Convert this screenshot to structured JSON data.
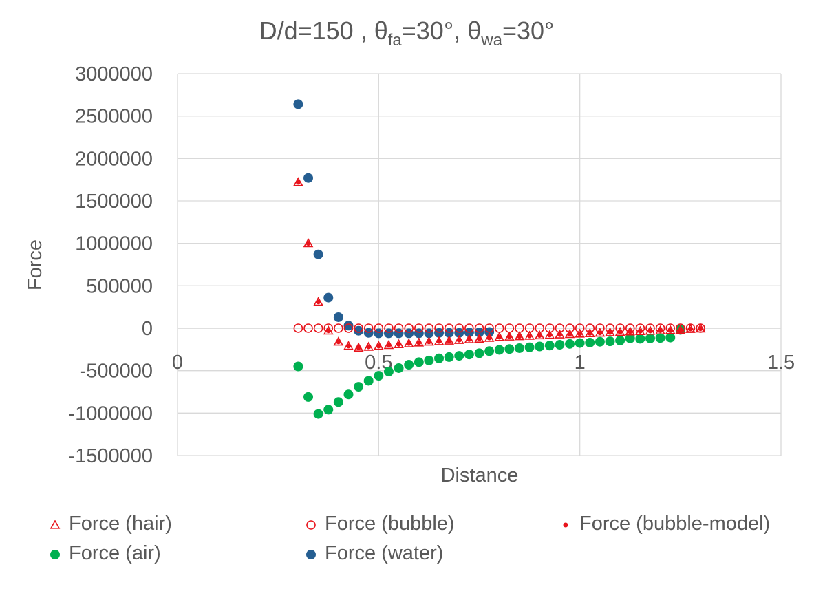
{
  "chart_data": {
    "type": "scatter",
    "title": {
      "base": "D/d=150 , θ",
      "sub1": "fa",
      "mid": "=30°, θ",
      "sub2": "wa",
      "tail": "=30°"
    },
    "xlabel": "Distance",
    "ylabel": "Force",
    "xlim": [
      0,
      1.5
    ],
    "ylim": [
      -1500000,
      3000000
    ],
    "x_ticks": [
      0,
      0.5,
      1,
      1.5
    ],
    "x_tick_labels": [
      "0",
      "0.5",
      "1",
      "1.5"
    ],
    "y_ticks": [
      3000000,
      2500000,
      2000000,
      1500000,
      1000000,
      500000,
      0,
      -500000,
      -1000000,
      -1500000
    ],
    "y_tick_labels": [
      "3000000",
      "2500000",
      "2000000",
      "1500000",
      "1000000",
      "500000",
      "0",
      "-500000",
      "-1000000",
      "-1500000"
    ],
    "grid": true,
    "legend_position": "bottom",
    "series": [
      {
        "name": "Force (hair)",
        "marker": "triangle-open",
        "color": "#e8141c",
        "points": [
          [
            0.3,
            1720000
          ],
          [
            0.325,
            1000000
          ],
          [
            0.35,
            310000
          ],
          [
            0.375,
            -30000
          ],
          [
            0.4,
            -160000
          ],
          [
            0.425,
            -210000
          ],
          [
            0.45,
            -230000
          ],
          [
            0.475,
            -220000
          ],
          [
            0.5,
            -210000
          ],
          [
            0.525,
            -200000
          ],
          [
            0.55,
            -190000
          ],
          [
            0.575,
            -180000
          ],
          [
            0.6,
            -170000
          ],
          [
            0.625,
            -160000
          ],
          [
            0.65,
            -155000
          ],
          [
            0.675,
            -148000
          ],
          [
            0.7,
            -140000
          ],
          [
            0.725,
            -132000
          ],
          [
            0.75,
            -125000
          ],
          [
            0.775,
            -115000
          ],
          [
            0.8,
            -105000
          ],
          [
            0.825,
            -100000
          ],
          [
            0.85,
            -95000
          ],
          [
            0.875,
            -90000
          ],
          [
            0.9,
            -85000
          ],
          [
            0.925,
            -80000
          ],
          [
            0.95,
            -75000
          ],
          [
            0.975,
            -70000
          ],
          [
            1.0,
            -65000
          ],
          [
            1.025,
            -60000
          ],
          [
            1.05,
            -55000
          ],
          [
            1.075,
            -50000
          ],
          [
            1.1,
            -45000
          ],
          [
            1.125,
            -40000
          ],
          [
            1.15,
            -36000
          ],
          [
            1.175,
            -32000
          ],
          [
            1.2,
            -28000
          ],
          [
            1.225,
            -24000
          ],
          [
            1.25,
            -20000
          ],
          [
            1.275,
            -10000
          ],
          [
            1.3,
            -5000
          ]
        ]
      },
      {
        "name": "Force (bubble)",
        "marker": "circle-open",
        "color": "#e8141c",
        "points": [
          [
            0.3,
            0
          ],
          [
            0.325,
            0
          ],
          [
            0.35,
            0
          ],
          [
            0.375,
            0
          ],
          [
            0.4,
            0
          ],
          [
            0.425,
            0
          ],
          [
            0.45,
            0
          ],
          [
            0.475,
            0
          ],
          [
            0.5,
            0
          ],
          [
            0.525,
            0
          ],
          [
            0.55,
            0
          ],
          [
            0.575,
            0
          ],
          [
            0.6,
            0
          ],
          [
            0.625,
            0
          ],
          [
            0.65,
            0
          ],
          [
            0.675,
            0
          ],
          [
            0.7,
            0
          ],
          [
            0.725,
            0
          ],
          [
            0.75,
            0
          ],
          [
            0.775,
            0
          ],
          [
            0.8,
            0
          ],
          [
            0.825,
            0
          ],
          [
            0.85,
            0
          ],
          [
            0.875,
            0
          ],
          [
            0.9,
            0
          ],
          [
            0.925,
            0
          ],
          [
            0.95,
            0
          ],
          [
            0.975,
            0
          ],
          [
            1.0,
            0
          ],
          [
            1.025,
            0
          ],
          [
            1.05,
            0
          ],
          [
            1.075,
            0
          ],
          [
            1.1,
            0
          ],
          [
            1.125,
            0
          ],
          [
            1.15,
            0
          ],
          [
            1.175,
            0
          ],
          [
            1.2,
            0
          ],
          [
            1.225,
            0
          ],
          [
            1.25,
            0
          ],
          [
            1.275,
            0
          ],
          [
            1.3,
            0
          ]
        ]
      },
      {
        "name": "Force (bubble-model)",
        "marker": "dot",
        "color": "#e8141c",
        "points": [
          [
            0.3,
            1720000
          ],
          [
            0.325,
            1000000
          ],
          [
            0.35,
            310000
          ],
          [
            0.375,
            -30000
          ],
          [
            0.4,
            -160000
          ],
          [
            0.425,
            -210000
          ],
          [
            0.45,
            -230000
          ],
          [
            0.475,
            -220000
          ],
          [
            0.5,
            -210000
          ],
          [
            0.525,
            -200000
          ],
          [
            0.55,
            -190000
          ],
          [
            0.575,
            -180000
          ],
          [
            0.6,
            -170000
          ],
          [
            0.625,
            -160000
          ],
          [
            0.65,
            -155000
          ],
          [
            0.675,
            -148000
          ],
          [
            0.7,
            -140000
          ],
          [
            0.725,
            -132000
          ],
          [
            0.75,
            -125000
          ],
          [
            0.775,
            -115000
          ],
          [
            0.8,
            -105000
          ],
          [
            0.825,
            -100000
          ],
          [
            0.85,
            -95000
          ],
          [
            0.875,
            -90000
          ],
          [
            0.9,
            -85000
          ],
          [
            0.925,
            -80000
          ],
          [
            0.95,
            -75000
          ],
          [
            0.975,
            -70000
          ],
          [
            1.0,
            -65000
          ],
          [
            1.025,
            -60000
          ],
          [
            1.05,
            -55000
          ],
          [
            1.075,
            -50000
          ],
          [
            1.1,
            -45000
          ],
          [
            1.125,
            -40000
          ],
          [
            1.15,
            -36000
          ],
          [
            1.175,
            -32000
          ],
          [
            1.2,
            -28000
          ],
          [
            1.225,
            -24000
          ],
          [
            1.25,
            -20000
          ],
          [
            1.275,
            -10000
          ],
          [
            1.3,
            -5000
          ]
        ]
      },
      {
        "name": "Force (air)",
        "marker": "dot-large",
        "color": "#00b050",
        "points": [
          [
            0.3,
            -450000
          ],
          [
            0.325,
            -810000
          ],
          [
            0.35,
            -1010000
          ],
          [
            0.375,
            -960000
          ],
          [
            0.4,
            -870000
          ],
          [
            0.425,
            -780000
          ],
          [
            0.45,
            -690000
          ],
          [
            0.475,
            -620000
          ],
          [
            0.5,
            -560000
          ],
          [
            0.525,
            -510000
          ],
          [
            0.55,
            -470000
          ],
          [
            0.575,
            -430000
          ],
          [
            0.6,
            -400000
          ],
          [
            0.625,
            -380000
          ],
          [
            0.65,
            -355000
          ],
          [
            0.675,
            -340000
          ],
          [
            0.7,
            -325000
          ],
          [
            0.725,
            -310000
          ],
          [
            0.75,
            -295000
          ],
          [
            0.775,
            -270000
          ],
          [
            0.8,
            -255000
          ],
          [
            0.825,
            -245000
          ],
          [
            0.85,
            -235000
          ],
          [
            0.875,
            -225000
          ],
          [
            0.9,
            -215000
          ],
          [
            0.925,
            -205000
          ],
          [
            0.95,
            -195000
          ],
          [
            0.975,
            -185000
          ],
          [
            1.0,
            -175000
          ],
          [
            1.025,
            -170000
          ],
          [
            1.05,
            -160000
          ],
          [
            1.075,
            -155000
          ],
          [
            1.1,
            -145000
          ],
          [
            1.125,
            -120000
          ],
          [
            1.15,
            -125000
          ],
          [
            1.175,
            -120000
          ],
          [
            1.2,
            -115000
          ],
          [
            1.225,
            -110000
          ],
          [
            1.25,
            -20000
          ]
        ]
      },
      {
        "name": "Force (water)",
        "marker": "dot-large",
        "color": "#255e91",
        "points": [
          [
            0.3,
            2640000
          ],
          [
            0.325,
            1770000
          ],
          [
            0.35,
            870000
          ],
          [
            0.375,
            360000
          ],
          [
            0.4,
            130000
          ],
          [
            0.425,
            30000
          ],
          [
            0.45,
            -30000
          ],
          [
            0.475,
            -55000
          ],
          [
            0.5,
            -60000
          ],
          [
            0.525,
            -60000
          ],
          [
            0.55,
            -60000
          ],
          [
            0.575,
            -60000
          ],
          [
            0.6,
            -60000
          ],
          [
            0.625,
            -60000
          ],
          [
            0.65,
            -55000
          ],
          [
            0.675,
            -55000
          ],
          [
            0.7,
            -55000
          ],
          [
            0.725,
            -50000
          ],
          [
            0.75,
            -50000
          ],
          [
            0.775,
            -45000
          ]
        ]
      }
    ]
  }
}
